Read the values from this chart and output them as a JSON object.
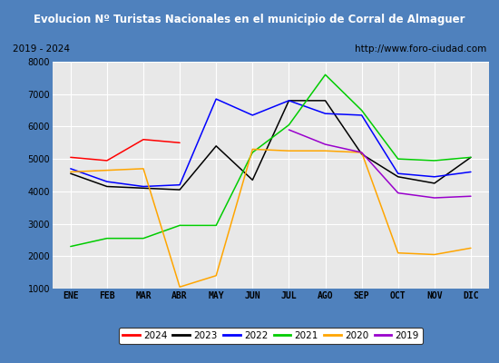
{
  "title": "Evolucion Nº Turistas Nacionales en el municipio de Corral de Almaguer",
  "subtitle_left": "2019 - 2024",
  "subtitle_right": "http://www.foro-ciudad.com",
  "months": [
    "ENE",
    "FEB",
    "MAR",
    "ABR",
    "MAY",
    "JUN",
    "JUL",
    "AGO",
    "SEP",
    "OCT",
    "NOV",
    "DIC"
  ],
  "ylim": [
    1000,
    8000
  ],
  "yticks": [
    1000,
    2000,
    3000,
    4000,
    5000,
    6000,
    7000,
    8000
  ],
  "series_order": [
    "2024",
    "2023",
    "2022",
    "2021",
    "2020",
    "2019"
  ],
  "series": {
    "2024": {
      "color": "#ff0000",
      "data": [
        5050,
        4950,
        5600,
        5500,
        null,
        null,
        null,
        null,
        null,
        null,
        null,
        null
      ]
    },
    "2023": {
      "color": "#000000",
      "data": [
        4550,
        4150,
        4100,
        4050,
        5400,
        4350,
        6800,
        6800,
        5150,
        4450,
        4250,
        5050
      ]
    },
    "2022": {
      "color": "#0000ff",
      "data": [
        4700,
        4300,
        4150,
        4200,
        6850,
        6350,
        6800,
        6400,
        6350,
        4550,
        4450,
        4600
      ]
    },
    "2021": {
      "color": "#00cc00",
      "data": [
        2300,
        2550,
        2550,
        2950,
        2950,
        5200,
        6050,
        7600,
        6500,
        5000,
        4950,
        5050
      ]
    },
    "2020": {
      "color": "#ffa500",
      "data": [
        4600,
        4650,
        4700,
        1050,
        1400,
        5300,
        5250,
        5250,
        5200,
        2100,
        2050,
        2250
      ]
    },
    "2019": {
      "color": "#9900cc",
      "data": [
        null,
        null,
        null,
        null,
        null,
        null,
        5900,
        5450,
        5200,
        3950,
        3800,
        3850
      ]
    }
  },
  "title_bg_color": "#4f81bd",
  "title_font_color": "#ffffff",
  "plot_bg_color": "#e8e8e8",
  "border_color": "#4f81bd",
  "legend_labels": [
    "2024",
    "2023",
    "2022",
    "2021",
    "2020",
    "2019"
  ],
  "legend_colors": [
    "#ff0000",
    "#000000",
    "#0000ff",
    "#00cc00",
    "#ffa500",
    "#9900cc"
  ]
}
